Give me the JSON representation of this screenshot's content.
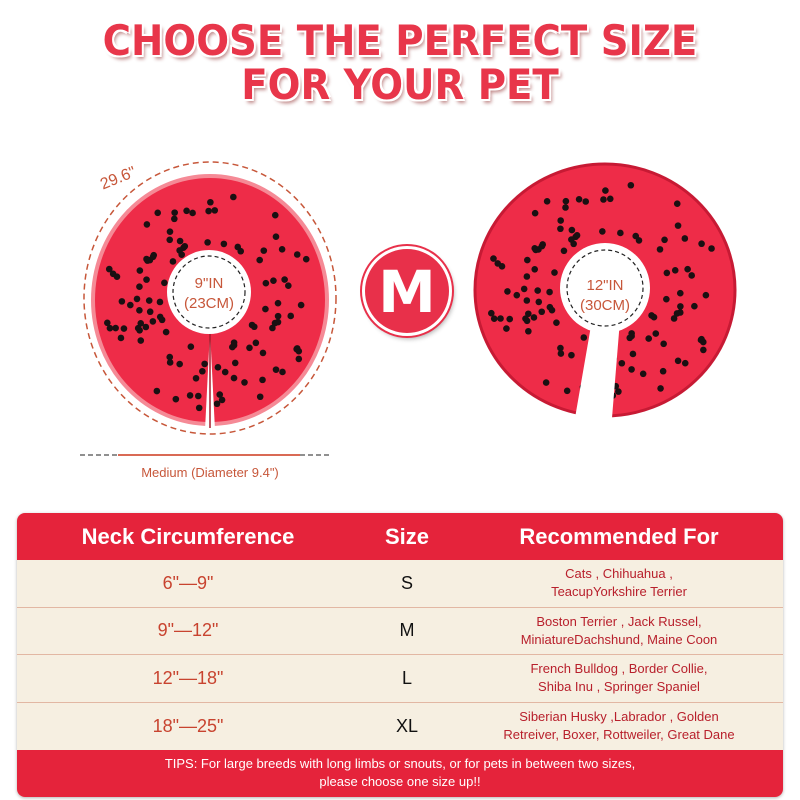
{
  "title": {
    "line1": "CHOOSE THE PERFECT SIZE",
    "line2": "FOR YOUR PET"
  },
  "left_collar": {
    "circumference": "29.6\"",
    "inner_in": "9\"IN",
    "inner_cm": "(23CM)",
    "diameter_label": "Medium (Diameter 9.4\")"
  },
  "right_collar": {
    "inner_in": "12\"IN",
    "inner_cm": "(30CM)"
  },
  "size_badge": "M",
  "colors": {
    "accent": "#e5233b",
    "collar": "#ee2c48",
    "table_bg": "#f6efe1"
  },
  "table": {
    "headers": [
      "Neck Circumference",
      "Size",
      "Recommended For"
    ],
    "rows": [
      {
        "neck": "6\"—9\"",
        "size": "S",
        "line1": "Cats , Chihuahua ,",
        "line2": "TeacupYorkshire Terrier"
      },
      {
        "neck": "9\"—12\"",
        "size": "M",
        "line1": "Boston Terrier , Jack Russel,",
        "line2": "MiniatureDachshund, Maine Coon"
      },
      {
        "neck": "12\"—18\"",
        "size": "L",
        "line1": "French Bulldog , Border Collie,",
        "line2": "Shiba Inu , Springer Spaniel"
      },
      {
        "neck": "18\"—25\"",
        "size": "XL",
        "line1": "Siberian Husky ,Labrador , Golden",
        "line2": "Retreiver, Boxer, Rottweiler, Great Dane"
      }
    ],
    "tips_line1": "TIPS: For large breeds with long limbs or snouts, or for pets in between two sizes,",
    "tips_line2": "please choose one size up!!"
  }
}
